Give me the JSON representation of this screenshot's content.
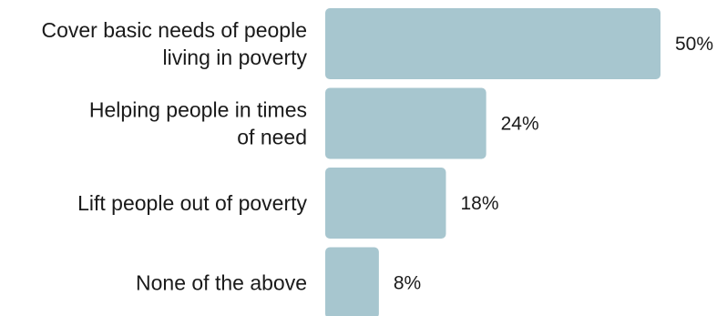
{
  "chart_data": {
    "type": "bar",
    "orientation": "horizontal",
    "categories": [
      [
        "Cover basic needs of people",
        "living in poverty"
      ],
      [
        "Helping people in times",
        "of need"
      ],
      [
        "Lift people out of poverty"
      ],
      [
        "None of the above"
      ]
    ],
    "values": [
      50,
      24,
      18,
      8
    ],
    "value_labels": [
      "50%",
      "24%",
      "18%",
      "8%"
    ],
    "title": "",
    "xlabel": "",
    "ylabel": "",
    "xlim": [
      0,
      50
    ],
    "grid": false,
    "legend": "none",
    "bar_color": "#a7c6cf"
  }
}
